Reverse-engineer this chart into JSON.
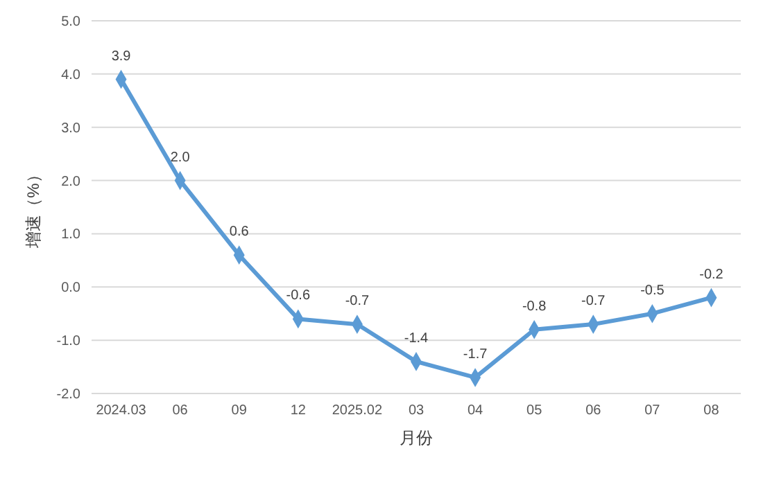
{
  "chart_data": {
    "type": "line",
    "xlabel": "月份",
    "ylabel": "增速（%）",
    "categories": [
      "2024.03",
      "06",
      "09",
      "12",
      "2025.02",
      "03",
      "04",
      "05",
      "06",
      "07",
      "08"
    ],
    "series": [
      {
        "color": "#5b9bd5",
        "values": [
          3.9,
          2.0,
          0.6,
          -0.6,
          -0.7,
          -1.4,
          -1.7,
          -0.8,
          -0.7,
          -0.5,
          -0.2
        ],
        "value_labels": [
          "3.9",
          "2.0",
          "0.6",
          "-0.6",
          "-0.7",
          "-1.4",
          "-1.7",
          "-0.8",
          "-0.7",
          "-0.5",
          "-0.2"
        ]
      }
    ],
    "ylim": [
      -2,
      5
    ],
    "yticks": [
      {
        "value": -2,
        "label": "-2.0"
      },
      {
        "value": -1,
        "label": "-1.0"
      },
      {
        "value": 0,
        "label": "0.0"
      },
      {
        "value": 1,
        "label": "1.0"
      },
      {
        "value": 2,
        "label": "2.0"
      },
      {
        "value": 3,
        "label": "3.0"
      },
      {
        "value": 4,
        "label": "4.0"
      },
      {
        "value": 5,
        "label": "5.0"
      }
    ],
    "grid": "y",
    "marker": "diamond",
    "line_style": "solid"
  }
}
